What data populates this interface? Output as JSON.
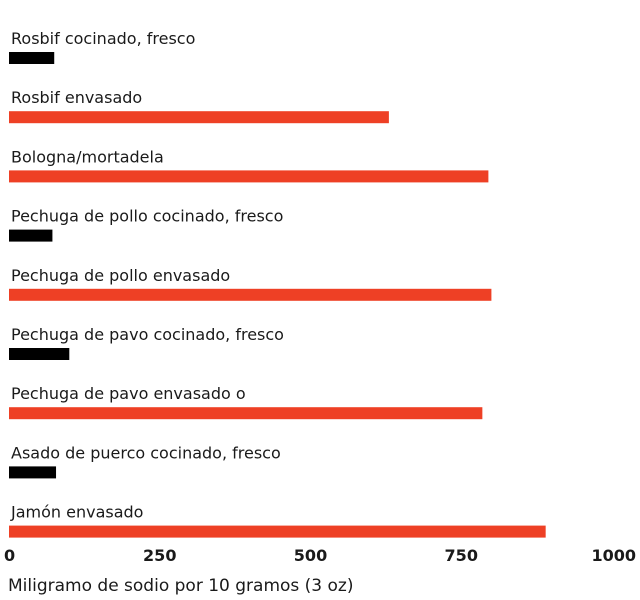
{
  "chart_data": {
    "type": "bar",
    "orientation": "horizontal",
    "categories": [
      "Rosbif cocinado, fresco",
      "Rosbif envasado",
      "Bologna/mortadela",
      "Pechuga de pollo cocinado, fresco",
      "Pechuga de pollo envasado",
      "Pechuga de pavo cocinado, fresco",
      "Pechuga de pavo envasado o",
      "Asado de puerco cocinado, fresco",
      "Jamón envasado"
    ],
    "values": [
      75,
      630,
      795,
      72,
      800,
      100,
      785,
      78,
      890
    ],
    "bar_colors": [
      "#000000",
      "#ee4025",
      "#ee4025",
      "#000000",
      "#ee4025",
      "#000000",
      "#ee4025",
      "#000000",
      "#ee4025"
    ],
    "xlim": [
      0,
      1000
    ],
    "xticks": [
      "0",
      "250",
      "500",
      "750",
      "1000"
    ],
    "xtick_values": [
      0,
      250,
      500,
      750,
      1000
    ],
    "xlabel": "Miligramo de sodio por 10 gramos (3 oz)",
    "title": "",
    "grid": false,
    "legend": "none"
  }
}
